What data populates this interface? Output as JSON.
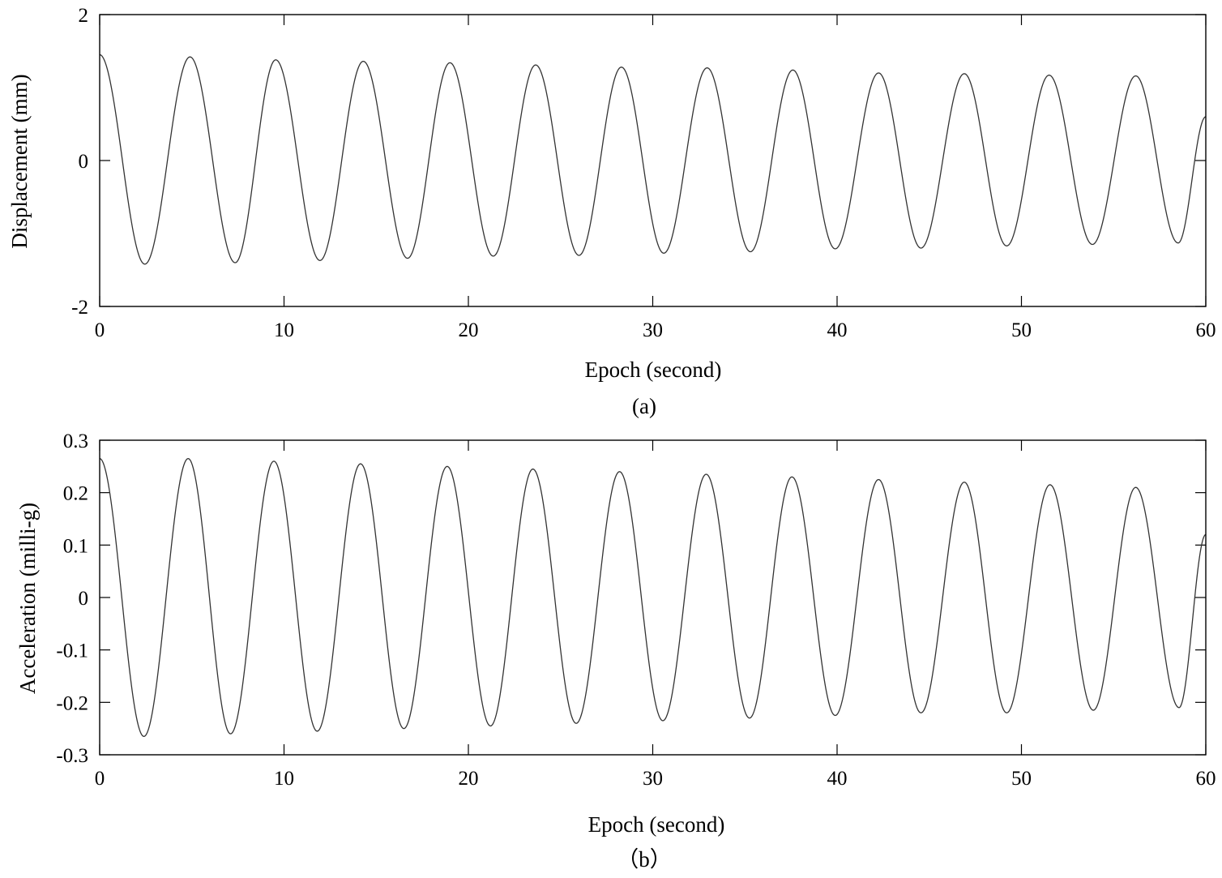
{
  "chart_data": [
    {
      "type": "line",
      "panel_label": "(a)",
      "xlabel": "Epoch (second)",
      "ylabel": "Displacement (mm)",
      "xlim": [
        0,
        60
      ],
      "ylim": [
        -2,
        2
      ],
      "xticks": [
        0,
        10,
        20,
        30,
        40,
        50,
        60
      ],
      "yticks": [
        -2,
        0,
        2
      ],
      "xtick_labels": [
        "0",
        "10",
        "20",
        "30",
        "40",
        "50",
        "60"
      ],
      "ytick_labels": [
        "-2",
        "0",
        "2"
      ],
      "grid": false,
      "line_color": "#333333",
      "series": [
        {
          "x": [
            0,
            2.45,
            4.9,
            7.35,
            9.55,
            11.95,
            14.3,
            16.7,
            19.0,
            21.35,
            23.65,
            26.0,
            28.3,
            30.6,
            32.95,
            35.3,
            37.6,
            39.9,
            42.25,
            44.55,
            46.9,
            49.2,
            51.5,
            53.85,
            56.2,
            58.5,
            60
          ],
          "y": [
            1.45,
            -1.42,
            1.42,
            -1.4,
            1.38,
            -1.37,
            1.36,
            -1.34,
            1.34,
            -1.31,
            1.31,
            -1.3,
            1.28,
            -1.27,
            1.27,
            -1.25,
            1.24,
            -1.21,
            1.2,
            -1.2,
            1.19,
            -1.17,
            1.17,
            -1.15,
            1.16,
            -1.13,
            0.6
          ]
        }
      ]
    },
    {
      "type": "line",
      "panel_label": "（b）",
      "xlabel": "Epoch (second)",
      "ylabel": "Acceleration (milli-g)",
      "xlim": [
        0,
        60
      ],
      "ylim": [
        -0.3,
        0.3
      ],
      "xticks": [
        0,
        10,
        20,
        30,
        40,
        50,
        60
      ],
      "yticks": [
        -0.3,
        -0.2,
        -0.1,
        0,
        0.1,
        0.2,
        0.3
      ],
      "xtick_labels": [
        "0",
        "10",
        "20",
        "30",
        "40",
        "50",
        "60"
      ],
      "ytick_labels": [
        "-0.3",
        "-0.2",
        "-0.1",
        "0",
        "0.1",
        "0.2",
        "0.3"
      ],
      "grid": false,
      "line_color": "#333333",
      "series": [
        {
          "x": [
            0,
            2.4,
            4.8,
            7.1,
            9.45,
            11.8,
            14.15,
            16.5,
            18.85,
            21.2,
            23.5,
            25.85,
            28.2,
            30.55,
            32.9,
            35.25,
            37.55,
            39.9,
            42.25,
            44.55,
            46.9,
            49.2,
            51.55,
            53.9,
            56.2,
            58.55,
            60
          ],
          "y": [
            0.265,
            -0.265,
            0.265,
            -0.26,
            0.26,
            -0.255,
            0.255,
            -0.25,
            0.25,
            -0.245,
            0.245,
            -0.24,
            0.24,
            -0.235,
            0.235,
            -0.23,
            0.23,
            -0.225,
            0.225,
            -0.22,
            0.22,
            -0.22,
            0.215,
            -0.215,
            0.21,
            -0.21,
            0.12
          ]
        }
      ]
    }
  ]
}
